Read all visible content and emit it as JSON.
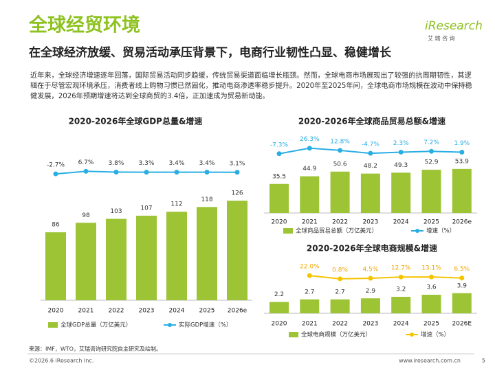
{
  "header": {
    "title": "全球经贸环境",
    "subtitle": "在全球经济放缓、贸易活动承压背景下，电商行业韧性凸显、稳健增长",
    "logo": "iResearch",
    "logo_cn": "艾 瑞 咨 询"
  },
  "intro": "近年来，全球经济增速逐年回落，国际贸易活动同步趋缓，传统贸易渠道面临增长瓶颈。然而，全球电商市场展现出了较强的抗周期韧性，其逻辑在于尽管宏观环境承压，消费者线上购物习惯已然固化，推动电商渗透率稳步提升。2020年至2025年间，全球电商市场规模在波动中保持稳健发展，2026年预期增速将达到全球商贸的3.4倍，正加速成为贸易新动能。",
  "chart_data": [
    {
      "type": "combo",
      "title": "2020-2026年全球GDP总量&增速",
      "categories": [
        "2020",
        "2021",
        "2022",
        "2023",
        "2024",
        "2025",
        "2026e"
      ],
      "series": [
        {
          "name": "全球GDP总量（万亿美元）",
          "type": "bar",
          "color": "#9cc434",
          "values": [
            86,
            98,
            103,
            107,
            112,
            118,
            126
          ]
        },
        {
          "name": "实际GDP增速（%）",
          "type": "line",
          "color": "#29aee4",
          "label_color": "#333333",
          "values": [
            -2.7,
            6.7,
            3.8,
            3.3,
            3.4,
            3.4,
            3.1
          ],
          "value_labels": [
            "-2.7%",
            "6.7%",
            "3.8%",
            "3.3%",
            "3.4%",
            "3.4%",
            "3.1%"
          ]
        }
      ]
    },
    {
      "type": "combo",
      "title": "2020-2026年全球商品贸易总额&增速",
      "categories": [
        "2020",
        "2021",
        "2022",
        "2023",
        "2024",
        "2025",
        "2026e"
      ],
      "series": [
        {
          "name": "全球商品贸易总额（万亿美元）",
          "type": "bar",
          "color": "#9cc434",
          "values": [
            35.5,
            44.9,
            50.6,
            48.2,
            49.3,
            52.9,
            53.9
          ]
        },
        {
          "name": "增速（%）",
          "type": "line",
          "color": "#29aee4",
          "label_color": "#29aee4",
          "values": [
            -7.3,
            26.3,
            12.8,
            -4.7,
            2.3,
            7.2,
            1.9
          ],
          "value_labels": [
            "-7.3%",
            "26.3%",
            "12.8%",
            "-4.7%",
            "2.3%",
            "7.2%",
            "1.9%"
          ]
        }
      ]
    },
    {
      "type": "combo",
      "title": "2020-2026年全球电商规模&增速",
      "categories": [
        "2020",
        "2021",
        "2022",
        "2023",
        "2024",
        "2025",
        "2026E"
      ],
      "series": [
        {
          "name": "全球电商规模（万亿美元）",
          "type": "bar",
          "color": "#9cc434",
          "values": [
            2.2,
            2.7,
            2.7,
            2.9,
            3.2,
            3.6,
            3.9
          ]
        },
        {
          "name": "增速（%）",
          "type": "line",
          "color": "#f5c400",
          "label_color": "#f0a500",
          "values": [
            null,
            22.0,
            0.8,
            4.5,
            12.7,
            13.1,
            6.5
          ],
          "value_labels": [
            null,
            "22.0%",
            "0.8%",
            "4.5%",
            "12.7%",
            "13.1%",
            "6.5%"
          ]
        }
      ]
    }
  ],
  "footer": {
    "source": "来源：IMF，WTO，艾瑞咨询研究院自主研究及绘制。",
    "copyright": "©2026.6 iResearch Inc.",
    "url": "www.iresearch.com.cn",
    "page": "5"
  }
}
